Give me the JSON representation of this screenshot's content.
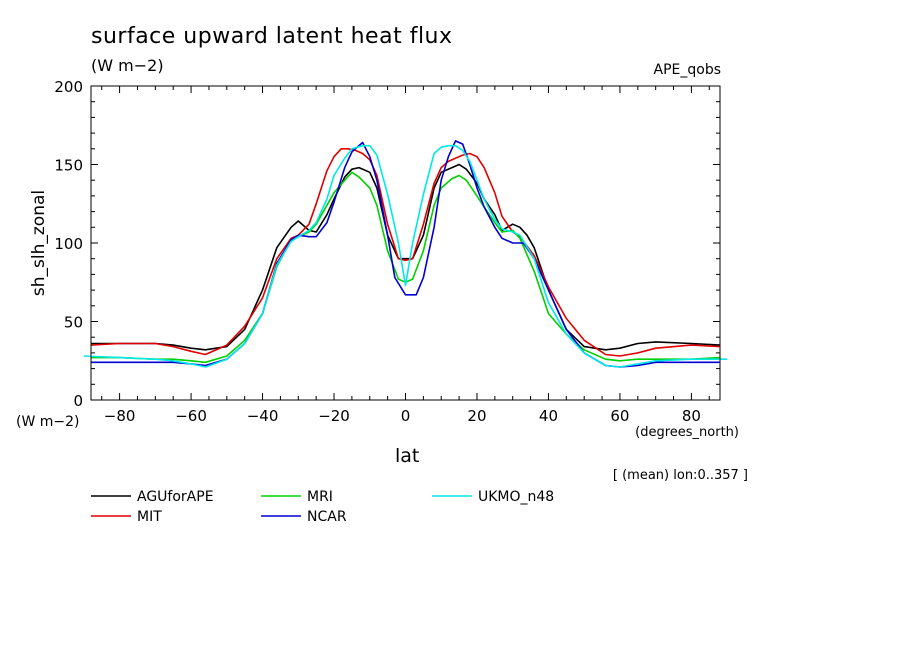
{
  "chart_data": {
    "type": "line",
    "title": "surface upward latent heat flux",
    "units": "(W m−2)",
    "experiment": "APE_qobs",
    "ylabel": "sh_slh_zonal",
    "y_units": "(W m−2)",
    "xlabel": "lat",
    "x_units": "(degrees_north)",
    "note": "[ (mean) lon:0..357 ]",
    "xlim": [
      -88,
      88
    ],
    "ylim": [
      0,
      200
    ],
    "x_ticks": [
      -80,
      -60,
      -40,
      -20,
      0,
      20,
      40,
      60,
      80
    ],
    "x_tick_labels": [
      "−80",
      "−60",
      "−40",
      "−20",
      "0",
      "20",
      "40",
      "60",
      "80"
    ],
    "y_ticks": [
      0,
      50,
      100,
      150,
      200
    ],
    "y_tick_labels": [
      "0",
      "50",
      "100",
      "150",
      "200"
    ],
    "grid": false,
    "legend_position": "bottom",
    "series": [
      {
        "name": "AGUforAPE",
        "color": "#000000",
        "x": [
          -88,
          -80,
          -70,
          -65,
          -60,
          -56,
          -50,
          -45,
          -40,
          -36,
          -32,
          -30,
          -27,
          -25,
          -22,
          -20,
          -17,
          -15,
          -13,
          -10,
          -8,
          -5,
          -2,
          0,
          2,
          5,
          8,
          10,
          13,
          15,
          17,
          20,
          22,
          25,
          27,
          30,
          32,
          34,
          36,
          40,
          45,
          50,
          56,
          60,
          65,
          70,
          80,
          88
        ],
        "y": [
          36,
          36,
          36,
          35,
          33,
          32,
          34,
          45,
          70,
          97,
          110,
          114,
          108,
          107,
          118,
          128,
          142,
          147,
          148,
          145,
          135,
          105,
          90,
          90,
          90,
          105,
          135,
          145,
          148,
          150,
          147,
          138,
          128,
          118,
          108,
          112,
          110,
          105,
          97,
          70,
          45,
          34,
          32,
          33,
          36,
          37,
          36,
          35
        ]
      },
      {
        "name": "MIT",
        "color": "#e00000",
        "x": [
          -88,
          -80,
          -70,
          -65,
          -60,
          -56,
          -50,
          -45,
          -40,
          -36,
          -32,
          -30,
          -27,
          -25,
          -22,
          -20,
          -18,
          -16,
          -14,
          -12,
          -10,
          -8,
          -5,
          -2,
          0,
          2,
          5,
          8,
          10,
          12,
          14,
          16,
          18,
          20,
          22,
          25,
          27,
          30,
          32,
          36,
          40,
          45,
          50,
          56,
          60,
          65,
          70,
          80,
          88
        ],
        "y": [
          35,
          36,
          36,
          34,
          31,
          29,
          35,
          47,
          65,
          90,
          103,
          105,
          112,
          125,
          146,
          155,
          160,
          160,
          159,
          157,
          153,
          143,
          112,
          90,
          89,
          90,
          112,
          138,
          148,
          152,
          154,
          156,
          157,
          155,
          148,
          132,
          117,
          107,
          104,
          92,
          72,
          52,
          38,
          29,
          28,
          30,
          33,
          35,
          34
        ]
      },
      {
        "name": "MRI",
        "color": "#00d000",
        "x": [
          -88,
          -80,
          -70,
          -65,
          -60,
          -56,
          -50,
          -45,
          -40,
          -36,
          -32,
          -30,
          -27,
          -25,
          -22,
          -20,
          -17,
          -15,
          -13,
          -10,
          -8,
          -5,
          -2,
          0,
          2,
          5,
          8,
          10,
          13,
          15,
          17,
          20,
          22,
          25,
          27,
          30,
          32,
          36,
          40,
          45,
          50,
          56,
          60,
          65,
          70,
          80,
          88
        ],
        "y": [
          27,
          27,
          26,
          26,
          25,
          24,
          28,
          38,
          55,
          85,
          102,
          104,
          107,
          112,
          124,
          132,
          140,
          145,
          142,
          135,
          124,
          95,
          77,
          75,
          77,
          95,
          124,
          135,
          141,
          143,
          140,
          130,
          123,
          113,
          107,
          108,
          103,
          82,
          55,
          42,
          32,
          26,
          25,
          26,
          26,
          26,
          27
        ]
      },
      {
        "name": "NCAR",
        "color": "#0000d0",
        "x": [
          -88,
          -80,
          -70,
          -65,
          -60,
          -56,
          -50,
          -45,
          -40,
          -36,
          -32,
          -30,
          -27,
          -25,
          -22,
          -20,
          -17,
          -15,
          -12,
          -10,
          -8,
          -5,
          -3,
          0,
          3,
          5,
          8,
          10,
          12,
          14,
          16,
          18,
          20,
          22,
          25,
          27,
          30,
          33,
          36,
          40,
          45,
          50,
          56,
          60,
          65,
          70,
          80,
          88
        ],
        "y": [
          24,
          24,
          24,
          24,
          23,
          22,
          26,
          36,
          55,
          87,
          102,
          105,
          104,
          104,
          113,
          126,
          148,
          158,
          164,
          155,
          140,
          105,
          78,
          67,
          67,
          78,
          110,
          140,
          155,
          165,
          163,
          150,
          135,
          123,
          110,
          103,
          100,
          100,
          90,
          70,
          45,
          30,
          22,
          21,
          22,
          24,
          24,
          24
        ]
      },
      {
        "name": "UKMO_n48",
        "color": "#00e8e8",
        "x": [
          -90,
          -80,
          -70,
          -65,
          -60,
          -56,
          -50,
          -45,
          -40,
          -36,
          -32,
          -30,
          -27,
          -25,
          -22,
          -20,
          -17,
          -15,
          -12,
          -10,
          -8,
          -5,
          -2,
          0,
          2,
          5,
          8,
          10,
          12,
          14,
          16,
          18,
          20,
          22,
          25,
          27,
          30,
          32,
          36,
          40,
          45,
          50,
          56,
          60,
          65,
          70,
          80,
          90
        ],
        "y": [
          28,
          27,
          26,
          25,
          23,
          21,
          26,
          36,
          55,
          86,
          101,
          104,
          108,
          113,
          128,
          143,
          154,
          160,
          162,
          162,
          156,
          131,
          100,
          73,
          100,
          131,
          157,
          161,
          162,
          162,
          159,
          152,
          140,
          128,
          115,
          109,
          107,
          105,
          90,
          62,
          42,
          30,
          22,
          21,
          23,
          25,
          26,
          26
        ]
      }
    ]
  }
}
